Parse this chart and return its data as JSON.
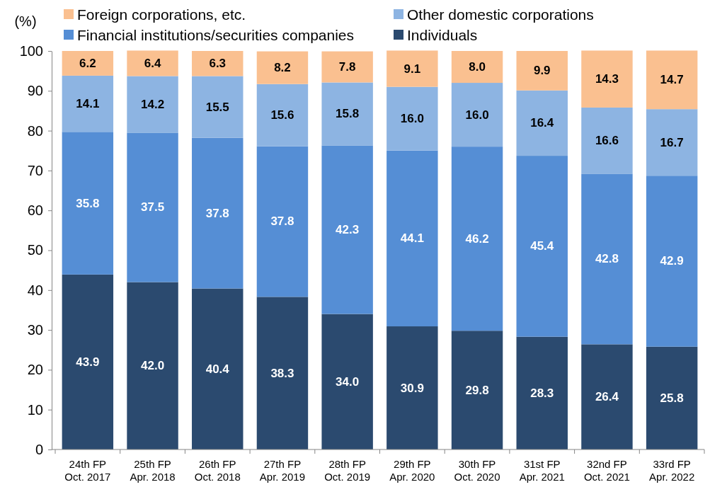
{
  "chart_data": {
    "type": "bar",
    "stacked": true,
    "ylabel": "(%)",
    "categories": [
      "24th FP\nOct. 2017",
      "25th FP\nApr. 2018",
      "26th FP\nOct. 2018",
      "27th FP\nApr. 2019",
      "28th FP\nOct. 2019",
      "29th FP\nApr. 2020",
      "30th FP\nOct. 2020",
      "31st FP\nApr. 2021",
      "32nd FP\nOct. 2021",
      "33rd FP\nApr. 2022"
    ],
    "series": [
      {
        "name": "Individuals",
        "color": "#2b4a6f",
        "values": [
          43.9,
          42.0,
          40.4,
          38.3,
          34.0,
          30.9,
          29.8,
          28.3,
          26.4,
          25.8
        ],
        "value_labels": [
          "43.9",
          "42.0",
          "40.4",
          "38.3",
          "34.0",
          "30.9",
          "29.8",
          "28.3",
          "26.4",
          "25.8"
        ]
      },
      {
        "name": "Financial institutions/securities companies",
        "color": "#558ed5",
        "values": [
          35.8,
          37.5,
          37.8,
          37.8,
          42.3,
          44.1,
          46.2,
          45.4,
          42.8,
          42.9
        ],
        "value_labels": [
          "35.8",
          "37.5",
          "37.8",
          "37.8",
          "42.3",
          "44.1",
          "46.2",
          "45.4",
          "42.8",
          "42.9"
        ]
      },
      {
        "name": "Other domestic corporations",
        "color": "#8db4e2",
        "values": [
          14.1,
          14.2,
          15.5,
          15.6,
          15.8,
          16.0,
          16.0,
          16.4,
          16.6,
          16.7
        ],
        "value_labels": [
          "14.1",
          "14.2",
          "15.5",
          "15.6",
          "15.8",
          "16.0",
          "16.0",
          "16.4",
          "16.6",
          "16.7"
        ]
      },
      {
        "name": "Foreign corporations, etc.",
        "color": "#fac090",
        "values": [
          6.2,
          6.4,
          6.3,
          8.2,
          7.8,
          9.1,
          8.0,
          9.9,
          14.3,
          14.7
        ],
        "value_labels": [
          "6.2",
          "6.4",
          "6.3",
          "8.2",
          "7.8",
          "9.1",
          "8.0",
          "9.9",
          "14.3",
          "14.7"
        ]
      }
    ],
    "ylim": [
      0,
      100
    ],
    "yticks": [
      0,
      10,
      20,
      30,
      40,
      50,
      60,
      70,
      80,
      90,
      100
    ],
    "legend": "top",
    "grid": false
  }
}
